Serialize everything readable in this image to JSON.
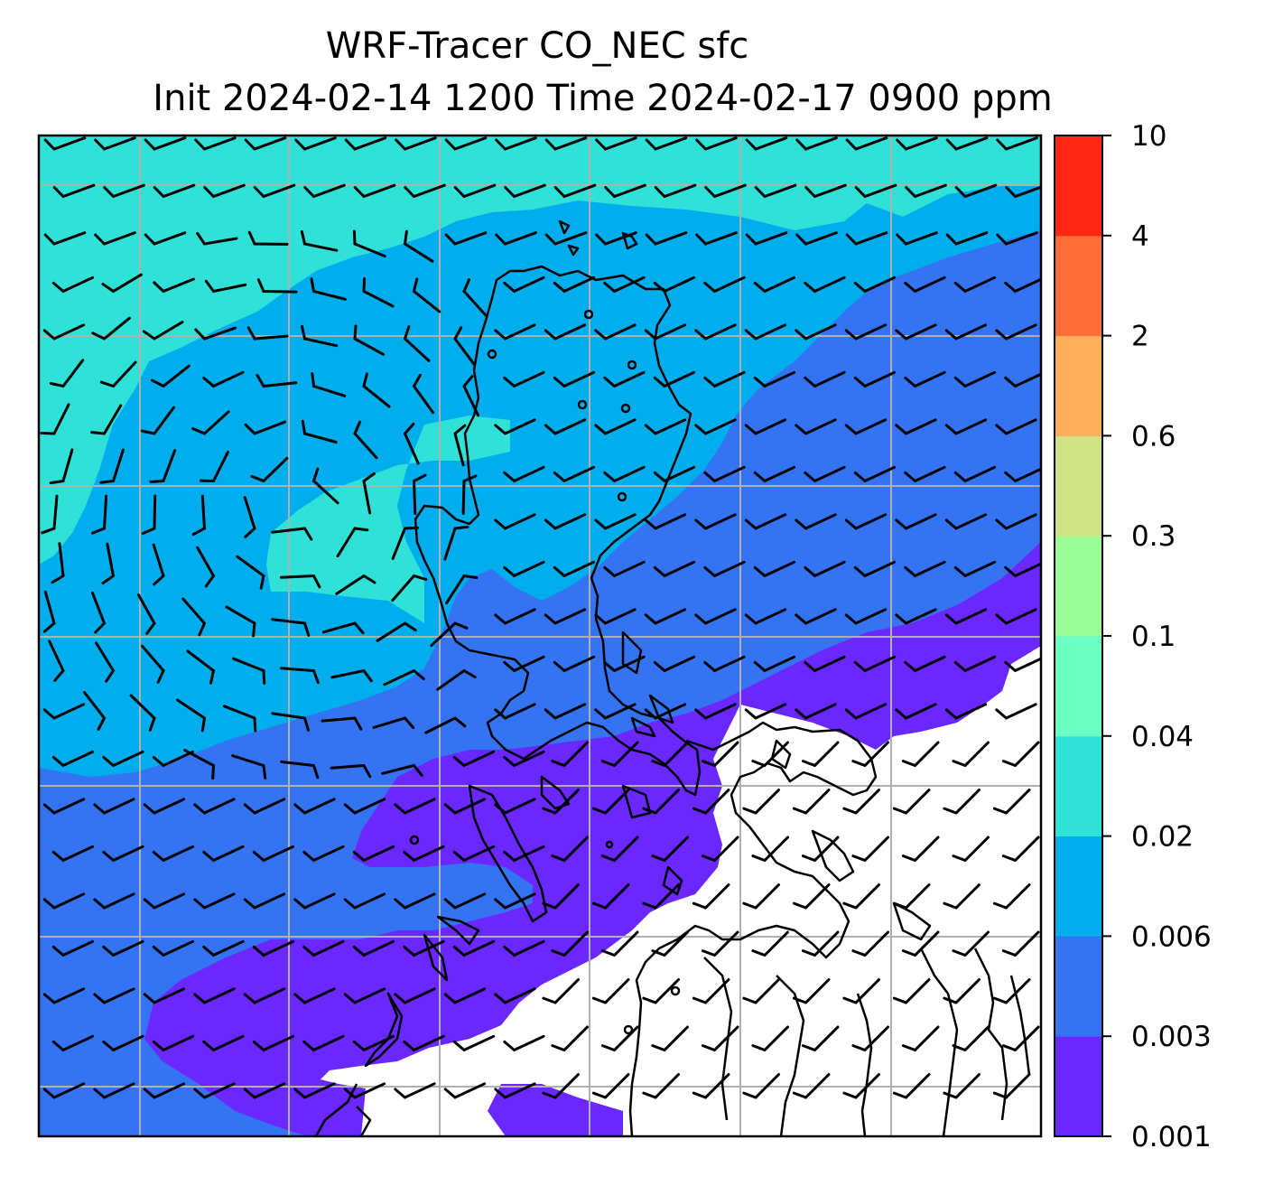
{
  "title": {
    "line1": "WRF-Tracer CO_NEC sfc",
    "line2": "Init 2024-02-14 1200 Time 2024-02-17 0900 ppm"
  },
  "map": {
    "variable": "CO_NEC tracer concentration",
    "level": "sfc",
    "gridlines": true,
    "wind_barbs": true,
    "colors": {
      "under": "#ffffff",
      "c1": "#6a28ff",
      "c2": "#3474f2",
      "c3": "#00aeee",
      "c4": "#30e1d8",
      "gridline": "#b0b0b0",
      "coast": "#000000"
    }
  },
  "colorbar": {
    "levels": [
      "0.001",
      "0.003",
      "0.006",
      "0.02",
      "0.04",
      "0.1",
      "0.3",
      "0.6",
      "2",
      "4",
      "10"
    ],
    "colors": [
      "#6a28ff",
      "#3474f2",
      "#00aeee",
      "#30e1d8",
      "#6cffc3",
      "#9afd98",
      "#cfe385",
      "#ffaf5a",
      "#ff6e39",
      "#ff2716"
    ]
  }
}
